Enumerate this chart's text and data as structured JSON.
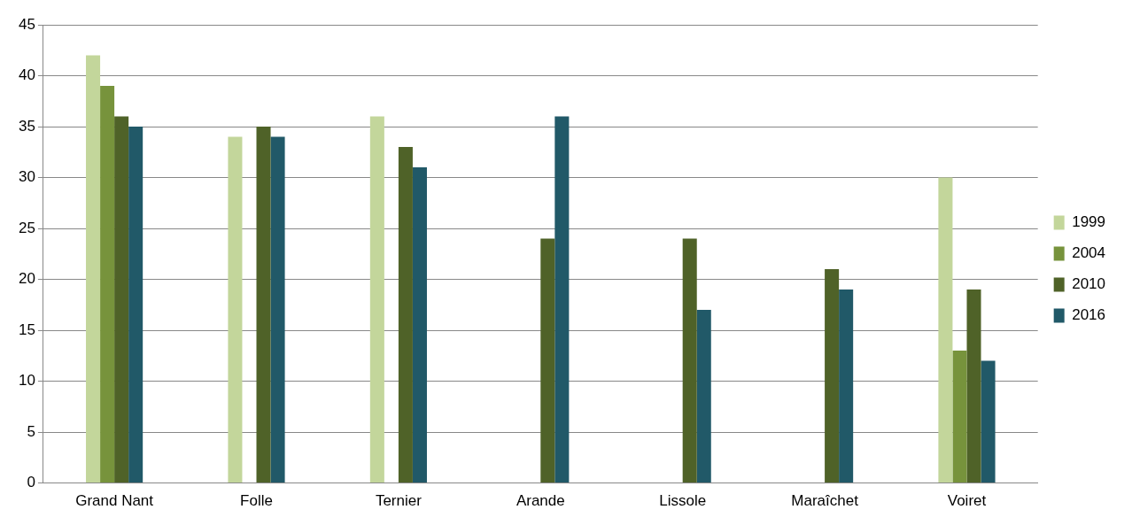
{
  "chart_data": {
    "type": "bar",
    "categories": [
      "Grand Nant",
      "Folle",
      "Ternier",
      "Arande",
      "Lissole",
      "Maraîchet",
      "Voiret"
    ],
    "series": [
      {
        "name": "1999",
        "color": "#c3d69b",
        "values": [
          42,
          34,
          36,
          null,
          null,
          null,
          30
        ]
      },
      {
        "name": "2004",
        "color": "#77933c",
        "values": [
          39,
          null,
          null,
          null,
          null,
          null,
          13
        ]
      },
      {
        "name": "2010",
        "color": "#4f6228",
        "values": [
          36,
          35,
          33,
          24,
          24,
          21,
          19
        ]
      },
      {
        "name": "2016",
        "color": "#215968",
        "values": [
          35,
          34,
          31,
          36,
          17,
          19,
          12
        ]
      }
    ],
    "ylim": [
      0,
      45
    ],
    "yticks": [
      0,
      5,
      10,
      15,
      20,
      25,
      30,
      35,
      40,
      45
    ],
    "grid": "y",
    "legend": "right"
  }
}
